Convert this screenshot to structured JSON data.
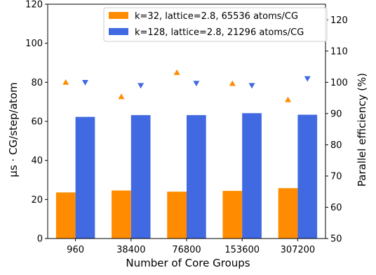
{
  "chart_data": {
    "type": "bar",
    "title": "",
    "xlabel": "Number of Core Groups",
    "ylabel": "μs · CG/step/atom",
    "y2label": "Parallel efficiency (%)",
    "categories": [
      "960",
      "38400",
      "76800",
      "153600",
      "307200"
    ],
    "ylim": [
      0,
      120
    ],
    "y2lim": [
      50,
      125
    ],
    "yticks": [
      "0",
      "20",
      "40",
      "60",
      "80",
      "100",
      "120"
    ],
    "y2ticks": [
      "50",
      "60",
      "70",
      "80",
      "90",
      "100",
      "110",
      "120"
    ],
    "grid": false,
    "legend_position": "top-right",
    "series": [
      {
        "name": "k=32, lattice=2.8, 65536 atoms/CG",
        "color": "#ff8c00",
        "values": [
          23.6,
          24.6,
          24.0,
          24.4,
          25.8
        ],
        "efficiency": [
          100.0,
          95.4,
          103.1,
          99.6,
          94.4
        ],
        "efficiency_marker": "triangle-up"
      },
      {
        "name": "k=128, lattice=2.8, 21296 atoms/CG",
        "color": "#4169e1",
        "values": [
          62.3,
          63.2,
          63.2,
          64.2,
          63.4
        ],
        "efficiency": [
          100.0,
          99.0,
          99.7,
          99.0,
          101.2
        ],
        "efficiency_marker": "triangle-down"
      }
    ]
  }
}
